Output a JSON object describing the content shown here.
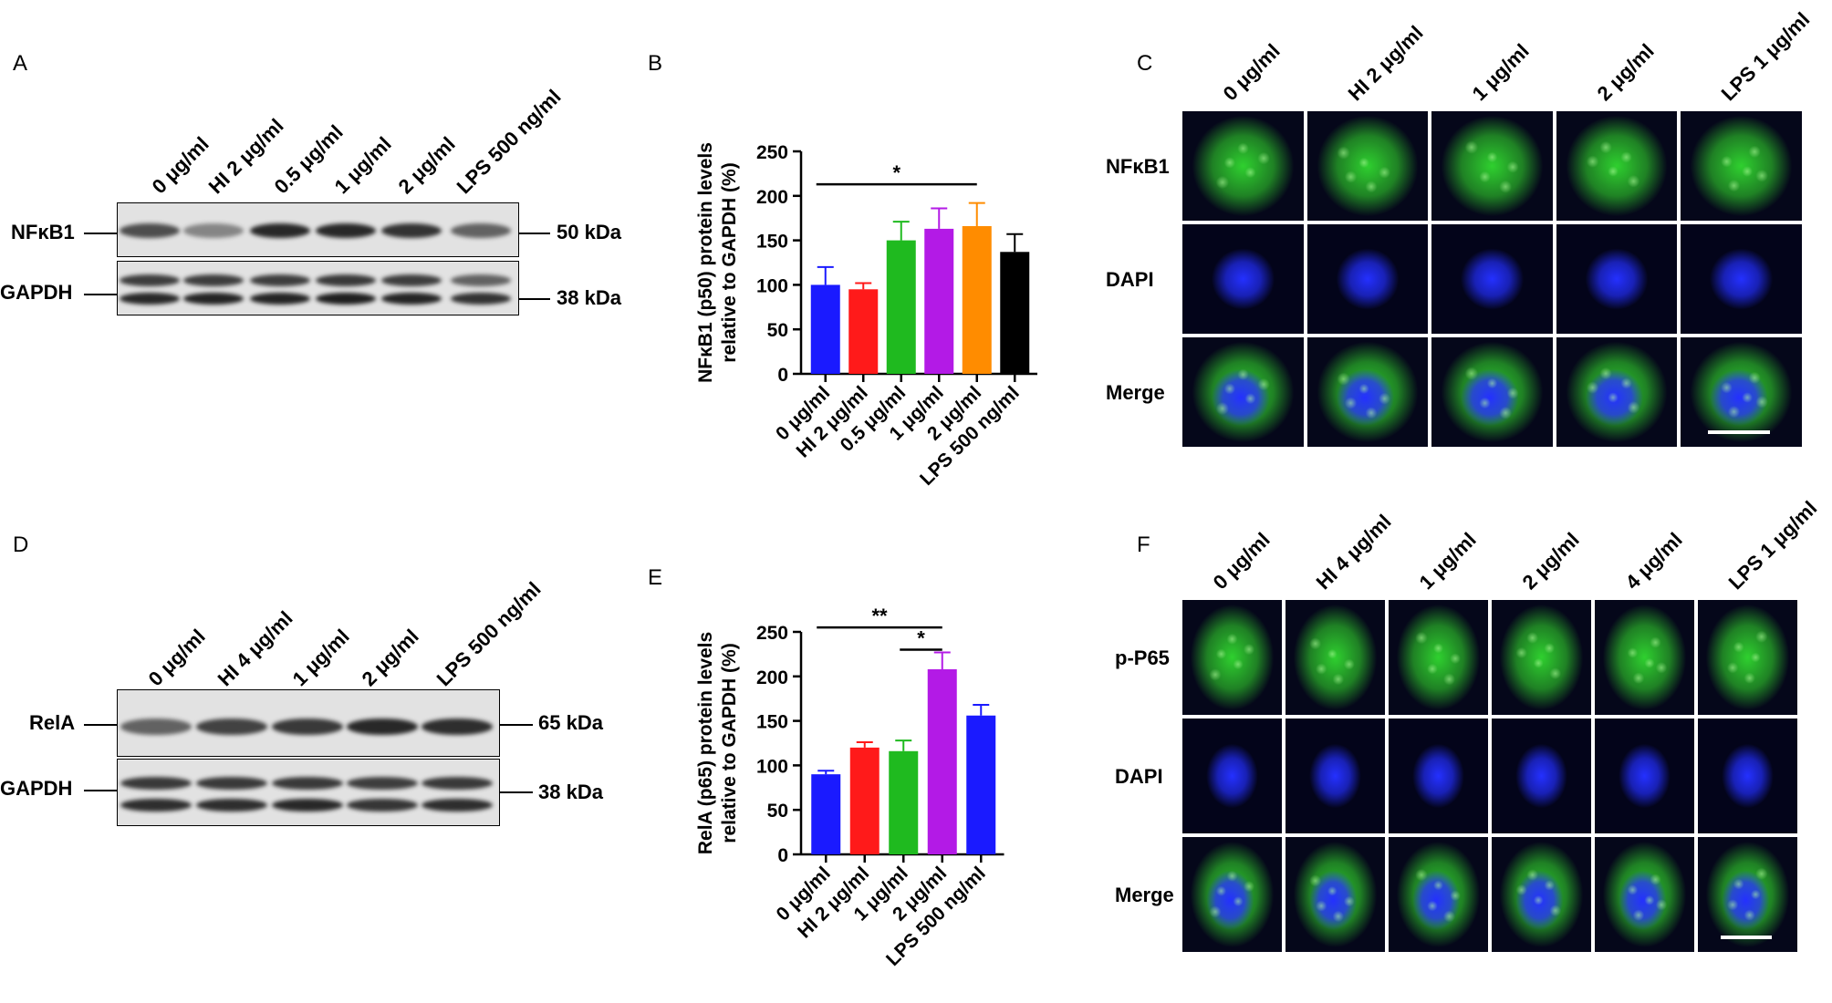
{
  "letters": {
    "A": "A",
    "B": "B",
    "C": "C",
    "D": "D",
    "E": "E",
    "F": "F"
  },
  "blotA": {
    "lanes": [
      "0 μg/ml",
      "HI 2 μg/ml",
      "0.5 μg/ml",
      "1 μg/ml",
      "2 μg/ml",
      "LPS 500 ng/ml"
    ],
    "rows": [
      {
        "protein": "NFκB1",
        "kda": "50 kDa"
      },
      {
        "protein": "GAPDH",
        "kda": "38 kDa"
      }
    ]
  },
  "blotD": {
    "lanes": [
      "0 μg/ml",
      "HI 4 μg/ml",
      "1 μg/ml",
      "2 μg/ml",
      "LPS 500 ng/ml"
    ],
    "rows": [
      {
        "protein": "RelA",
        "kda": "65 kDa"
      },
      {
        "protein": "GAPDH",
        "kda": "38 kDa"
      }
    ]
  },
  "chart_data": [
    {
      "type": "bar",
      "panel": "B",
      "categories": [
        "0 μg/ml",
        "HI 2 μg/ml",
        "0.5 μg/ml",
        "1 μg/ml",
        "2 μg/ml",
        "LPS 500 ng/ml"
      ],
      "values": [
        100,
        95,
        150,
        163,
        166,
        137
      ],
      "errors": [
        20,
        7,
        21,
        23,
        26,
        20
      ],
      "colors": [
        "#1a1aff",
        "#ff1a1a",
        "#1fba1f",
        "#b31ae6",
        "#ff8c00",
        "#000000"
      ],
      "ylabel_line1": "NFκB1  (p50) protein levels",
      "ylabel_line2": "relative to GAPDH (%)",
      "ylim": [
        0,
        250
      ],
      "yticks": [
        "0",
        "50",
        "100",
        "150",
        "200",
        "250"
      ],
      "significance": [
        {
          "from": 0,
          "to": 4,
          "label": "*",
          "y": 213
        }
      ]
    },
    {
      "type": "bar",
      "panel": "E",
      "categories": [
        "0 μg/ml",
        "HI 2 μg/ml",
        "1 μg/ml",
        "2 μg/ml",
        "LPS 500 ng/ml"
      ],
      "values": [
        90,
        120,
        116,
        208,
        156
      ],
      "errors": [
        4,
        6,
        12,
        19,
        12
      ],
      "colors": [
        "#1a1aff",
        "#ff1a1a",
        "#1fba1f",
        "#b31ae6",
        "#1a1aff"
      ],
      "ylabel_line1": "RelA (p65) protein levels",
      "ylabel_line2": "relative to GAPDH (%)",
      "ylim": [
        0,
        250
      ],
      "yticks": [
        "0",
        "50",
        "100",
        "150",
        "200",
        "250"
      ],
      "significance": [
        {
          "from": 0,
          "to": 3,
          "label": "**",
          "y": 255
        },
        {
          "from": 2,
          "to": 3,
          "label": "*",
          "y": 230
        }
      ]
    }
  ],
  "micC": {
    "columns": [
      "0 μg/ml",
      "HI 2 μg/ml",
      "1 μg/ml",
      "2 μg/ml",
      "LPS 1 μg/ml"
    ],
    "rows": [
      "NFκB1",
      "DAPI",
      "Merge"
    ]
  },
  "micF": {
    "columns": [
      "0 μg/ml",
      "HI 4 μg/ml",
      "1 μg/ml",
      "2 μg/ml",
      "4 μg/ml",
      "LPS 1 μg/ml"
    ],
    "rows": [
      "p-P65",
      "DAPI",
      "Merge"
    ]
  },
  "colors": {
    "green": "#2fd02f",
    "blue": "#2430ff"
  }
}
